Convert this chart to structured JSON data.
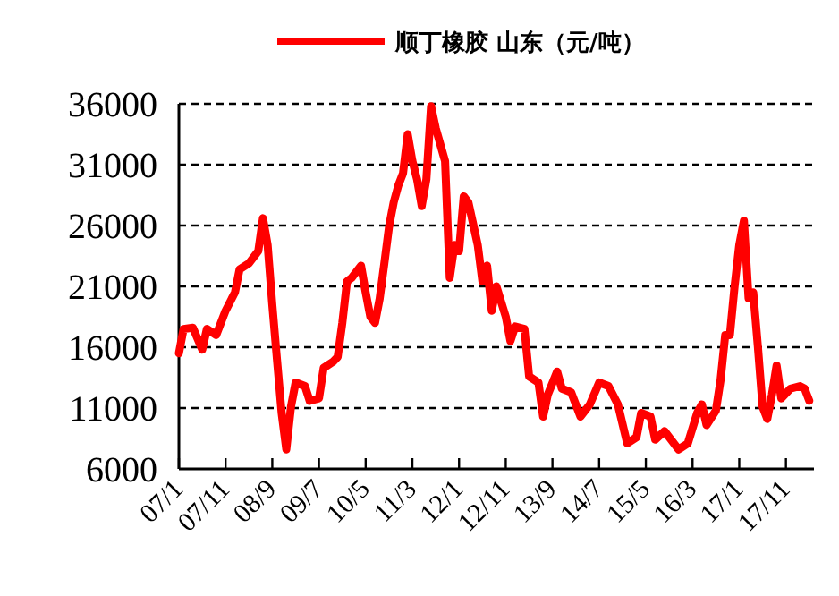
{
  "chart_data": {
    "type": "line",
    "xlim": [
      "2007-01",
      "2018-05"
    ],
    "xticks": [
      {
        "value": "2007-01",
        "label": "07/1"
      },
      {
        "value": "2007-11",
        "label": "07/11"
      },
      {
        "value": "2008-09",
        "label": "08/9"
      },
      {
        "value": "2009-07",
        "label": "09/7"
      },
      {
        "value": "2010-05",
        "label": "10/5"
      },
      {
        "value": "2011-03",
        "label": "11/3"
      },
      {
        "value": "2012-01",
        "label": "12/1"
      },
      {
        "value": "2012-11",
        "label": "12/11"
      },
      {
        "value": "2013-09",
        "label": "13/9"
      },
      {
        "value": "2014-07",
        "label": "14/7"
      },
      {
        "value": "2015-05",
        "label": "15/5"
      },
      {
        "value": "2016-03",
        "label": "16/3"
      },
      {
        "value": "2017-01",
        "label": "17/1"
      },
      {
        "value": "2017-11",
        "label": "17/11"
      }
    ],
    "ylim": [
      6000,
      36000
    ],
    "yticks": [
      6000,
      11000,
      16000,
      21000,
      26000,
      31000,
      36000
    ],
    "grid": "y",
    "legend": "top",
    "marker": "none",
    "line_style": "solid",
    "series": [
      {
        "name": "顺丁橡胶 山东（元/吨）",
        "color": "#ff0000",
        "x": [
          "2007-01",
          "2007-02",
          "2007-04",
          "2007-06",
          "2007-07",
          "2007-09",
          "2007-11",
          "2008-01",
          "2008-02",
          "2008-04",
          "2008-06",
          "2008-07",
          "2008-08",
          "2008-09",
          "2008-10",
          "2008-11",
          "2008-12",
          "2009-01",
          "2009-02",
          "2009-04",
          "2009-05",
          "2009-07",
          "2009-08",
          "2009-10",
          "2009-11",
          "2009-12",
          "2010-01",
          "2010-02",
          "2010-04",
          "2010-05",
          "2010-06",
          "2010-07",
          "2010-08",
          "2010-09",
          "2010-10",
          "2010-11",
          "2010-12",
          "2011-01",
          "2011-02",
          "2011-03",
          "2011-04",
          "2011-05",
          "2011-06",
          "2011-07",
          "2011-08",
          "2011-10",
          "2011-11",
          "2011-12",
          "2012-01",
          "2012-02",
          "2012-03",
          "2012-05",
          "2012-06",
          "2012-07",
          "2012-08",
          "2012-09",
          "2012-11",
          "2012-12",
          "2013-01",
          "2013-03",
          "2013-04",
          "2013-06",
          "2013-07",
          "2013-08",
          "2013-10",
          "2013-11",
          "2014-01",
          "2014-03",
          "2014-05",
          "2014-07",
          "2014-09",
          "2014-11",
          "2015-01",
          "2015-03",
          "2015-04",
          "2015-06",
          "2015-07",
          "2015-09",
          "2015-12",
          "2016-02",
          "2016-04",
          "2016-05",
          "2016-06",
          "2016-08",
          "2016-09",
          "2016-10",
          "2016-11",
          "2016-12",
          "2017-01",
          "2017-02",
          "2017-03",
          "2017-04",
          "2017-05",
          "2017-06",
          "2017-07",
          "2017-08",
          "2017-09",
          "2017-10",
          "2017-12",
          "2018-02",
          "2018-03",
          "2018-04"
        ],
        "values": [
          15500,
          17500,
          17600,
          15800,
          17500,
          17000,
          19000,
          20500,
          22400,
          22900,
          23900,
          26600,
          24400,
          19500,
          15000,
          10600,
          7600,
          11100,
          13100,
          12800,
          11600,
          11800,
          14300,
          14800,
          15200,
          18000,
          21400,
          21700,
          22700,
          20500,
          18500,
          18000,
          20000,
          22900,
          25900,
          27900,
          29300,
          30300,
          33500,
          31300,
          29800,
          27600,
          29800,
          35800,
          34000,
          31300,
          21700,
          24400,
          23900,
          28400,
          27900,
          24400,
          21400,
          22700,
          19000,
          21000,
          18500,
          16500,
          17700,
          17500,
          13600,
          13100,
          10300,
          12100,
          14000,
          12600,
          12300,
          10300,
          11300,
          13100,
          12800,
          11300,
          8100,
          8600,
          10600,
          10300,
          8400,
          9100,
          7600,
          8100,
          10600,
          11300,
          9600,
          10800,
          13300,
          17000,
          17000,
          21000,
          24400,
          26400,
          20000,
          20500,
          16000,
          11100,
          10100,
          12100,
          14500,
          11800,
          12600,
          12800,
          12600,
          11600
        ]
      }
    ]
  }
}
